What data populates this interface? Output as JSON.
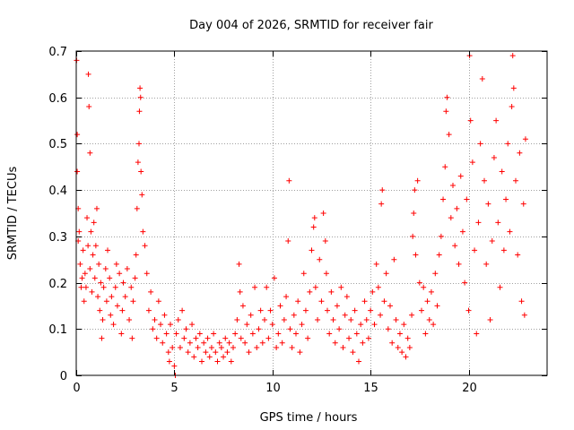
{
  "chart_data": {
    "type": "scatter",
    "title": "Day 004 of 2026, SRMTID for receiver fair",
    "xlabel": "GPS time / hours",
    "ylabel": "SRMTID / TECUs",
    "xlim": [
      0,
      24
    ],
    "ylim": [
      0,
      0.7
    ],
    "grid": true,
    "marker": "+",
    "marker_color": "#ff0000",
    "xticks": [
      0,
      5,
      10,
      15,
      20
    ],
    "xtick_labels": [
      "0",
      "5",
      "10",
      "15",
      "20"
    ],
    "yticks": [
      0,
      0.1,
      0.2,
      0.3,
      0.4,
      0.5,
      0.6,
      0.7
    ],
    "ytick_labels": [
      "0",
      "0.1",
      "0.2",
      "0.3",
      "0.4",
      "0.5",
      "0.6",
      "0.7"
    ],
    "series": [
      {
        "name": "SRMTID",
        "points": [
          [
            0.02,
            0.68
          ],
          [
            0.05,
            0.52
          ],
          [
            0.05,
            0.44
          ],
          [
            0.1,
            0.36
          ],
          [
            0.1,
            0.29
          ],
          [
            0.15,
            0.31
          ],
          [
            0.2,
            0.24
          ],
          [
            0.25,
            0.19
          ],
          [
            0.3,
            0.21
          ],
          [
            0.35,
            0.27
          ],
          [
            0.4,
            0.16
          ],
          [
            0.45,
            0.22
          ],
          [
            0.5,
            0.19
          ],
          [
            0.55,
            0.34
          ],
          [
            0.6,
            0.28
          ],
          [
            0.62,
            0.65
          ],
          [
            0.65,
            0.58
          ],
          [
            0.7,
            0.48
          ],
          [
            0.7,
            0.23
          ],
          [
            0.75,
            0.31
          ],
          [
            0.8,
            0.18
          ],
          [
            0.85,
            0.26
          ],
          [
            0.9,
            0.33
          ],
          [
            0.95,
            0.21
          ],
          [
            1.0,
            0.28
          ],
          [
            1.05,
            0.36
          ],
          [
            1.1,
            0.17
          ],
          [
            1.15,
            0.24
          ],
          [
            1.2,
            0.14
          ],
          [
            1.25,
            0.2
          ],
          [
            1.3,
            0.08
          ],
          [
            1.35,
            0.12
          ],
          [
            1.4,
            0.19
          ],
          [
            1.5,
            0.23
          ],
          [
            1.55,
            0.16
          ],
          [
            1.6,
            0.27
          ],
          [
            1.7,
            0.21
          ],
          [
            1.75,
            0.13
          ],
          [
            1.8,
            0.17
          ],
          [
            1.9,
            0.11
          ],
          [
            2.0,
            0.19
          ],
          [
            2.05,
            0.24
          ],
          [
            2.1,
            0.15
          ],
          [
            2.2,
            0.22
          ],
          [
            2.3,
            0.09
          ],
          [
            2.35,
            0.14
          ],
          [
            2.4,
            0.2
          ],
          [
            2.5,
            0.17
          ],
          [
            2.6,
            0.23
          ],
          [
            2.7,
            0.12
          ],
          [
            2.8,
            0.19
          ],
          [
            2.85,
            0.08
          ],
          [
            2.9,
            0.16
          ],
          [
            3.0,
            0.21
          ],
          [
            3.05,
            0.26
          ],
          [
            3.1,
            0.36
          ],
          [
            3.15,
            0.46
          ],
          [
            3.2,
            0.5
          ],
          [
            3.22,
            0.57
          ],
          [
            3.25,
            0.62
          ],
          [
            3.28,
            0.6
          ],
          [
            3.3,
            0.44
          ],
          [
            3.35,
            0.39
          ],
          [
            3.4,
            0.31
          ],
          [
            3.5,
            0.28
          ],
          [
            3.6,
            0.22
          ],
          [
            3.7,
            0.14
          ],
          [
            3.8,
            0.18
          ],
          [
            3.9,
            0.1
          ],
          [
            4.0,
            0.12
          ],
          [
            4.1,
            0.08
          ],
          [
            4.2,
            0.16
          ],
          [
            4.3,
            0.11
          ],
          [
            4.4,
            0.07
          ],
          [
            4.5,
            0.13
          ],
          [
            4.6,
            0.09
          ],
          [
            4.7,
            0.05
          ],
          [
            4.75,
            0.03
          ],
          [
            4.8,
            0.11
          ],
          [
            4.9,
            0.06
          ],
          [
            5.0,
            0.02
          ],
          [
            5.05,
            0.0
          ],
          [
            5.1,
            0.09
          ],
          [
            5.2,
            0.12
          ],
          [
            5.3,
            0.06
          ],
          [
            5.4,
            0.14
          ],
          [
            5.5,
            0.08
          ],
          [
            5.6,
            0.1
          ],
          [
            5.7,
            0.05
          ],
          [
            5.8,
            0.07
          ],
          [
            5.9,
            0.11
          ],
          [
            6.0,
            0.04
          ],
          [
            6.1,
            0.08
          ],
          [
            6.2,
            0.06
          ],
          [
            6.3,
            0.09
          ],
          [
            6.4,
            0.03
          ],
          [
            6.5,
            0.07
          ],
          [
            6.6,
            0.05
          ],
          [
            6.7,
            0.08
          ],
          [
            6.8,
            0.04
          ],
          [
            6.9,
            0.06
          ],
          [
            7.0,
            0.09
          ],
          [
            7.1,
            0.05
          ],
          [
            7.2,
            0.03
          ],
          [
            7.3,
            0.07
          ],
          [
            7.4,
            0.06
          ],
          [
            7.5,
            0.04
          ],
          [
            7.6,
            0.08
          ],
          [
            7.7,
            0.05
          ],
          [
            7.8,
            0.07
          ],
          [
            7.9,
            0.03
          ],
          [
            8.0,
            0.06
          ],
          [
            8.1,
            0.09
          ],
          [
            8.2,
            0.12
          ],
          [
            8.3,
            0.24
          ],
          [
            8.35,
            0.18
          ],
          [
            8.4,
            0.08
          ],
          [
            8.5,
            0.15
          ],
          [
            8.6,
            0.07
          ],
          [
            8.7,
            0.11
          ],
          [
            8.8,
            0.05
          ],
          [
            8.9,
            0.13
          ],
          [
            9.0,
            0.09
          ],
          [
            9.1,
            0.19
          ],
          [
            9.2,
            0.06
          ],
          [
            9.3,
            0.1
          ],
          [
            9.4,
            0.14
          ],
          [
            9.5,
            0.07
          ],
          [
            9.6,
            0.12
          ],
          [
            9.7,
            0.19
          ],
          [
            9.8,
            0.08
          ],
          [
            9.9,
            0.14
          ],
          [
            10.0,
            0.11
          ],
          [
            10.1,
            0.21
          ],
          [
            10.2,
            0.06
          ],
          [
            10.3,
            0.09
          ],
          [
            10.4,
            0.15
          ],
          [
            10.5,
            0.07
          ],
          [
            10.6,
            0.12
          ],
          [
            10.7,
            0.17
          ],
          [
            10.8,
            0.29
          ],
          [
            10.85,
            0.42
          ],
          [
            10.9,
            0.1
          ],
          [
            11.0,
            0.06
          ],
          [
            11.1,
            0.13
          ],
          [
            11.2,
            0.09
          ],
          [
            11.3,
            0.16
          ],
          [
            11.4,
            0.05
          ],
          [
            11.5,
            0.11
          ],
          [
            11.6,
            0.22
          ],
          [
            11.7,
            0.14
          ],
          [
            11.8,
            0.08
          ],
          [
            11.9,
            0.18
          ],
          [
            12.0,
            0.27
          ],
          [
            12.1,
            0.32
          ],
          [
            12.15,
            0.34
          ],
          [
            12.2,
            0.19
          ],
          [
            12.3,
            0.12
          ],
          [
            12.4,
            0.25
          ],
          [
            12.5,
            0.16
          ],
          [
            12.6,
            0.35
          ],
          [
            12.7,
            0.29
          ],
          [
            12.75,
            0.22
          ],
          [
            12.8,
            0.14
          ],
          [
            12.9,
            0.09
          ],
          [
            13.0,
            0.18
          ],
          [
            13.1,
            0.12
          ],
          [
            13.2,
            0.07
          ],
          [
            13.3,
            0.15
          ],
          [
            13.4,
            0.1
          ],
          [
            13.5,
            0.19
          ],
          [
            13.6,
            0.06
          ],
          [
            13.7,
            0.13
          ],
          [
            13.8,
            0.17
          ],
          [
            13.9,
            0.08
          ],
          [
            14.0,
            0.12
          ],
          [
            14.1,
            0.05
          ],
          [
            14.2,
            0.14
          ],
          [
            14.3,
            0.09
          ],
          [
            14.4,
            0.03
          ],
          [
            14.5,
            0.11
          ],
          [
            14.6,
            0.07
          ],
          [
            14.7,
            0.16
          ],
          [
            14.8,
            0.12
          ],
          [
            14.9,
            0.08
          ],
          [
            15.0,
            0.14
          ],
          [
            15.1,
            0.18
          ],
          [
            15.2,
            0.11
          ],
          [
            15.3,
            0.24
          ],
          [
            15.4,
            0.19
          ],
          [
            15.5,
            0.13
          ],
          [
            15.55,
            0.37
          ],
          [
            15.6,
            0.4
          ],
          [
            15.7,
            0.16
          ],
          [
            15.8,
            0.22
          ],
          [
            15.9,
            0.1
          ],
          [
            16.0,
            0.15
          ],
          [
            16.1,
            0.07
          ],
          [
            16.2,
            0.25
          ],
          [
            16.3,
            0.12
          ],
          [
            16.4,
            0.06
          ],
          [
            16.5,
            0.09
          ],
          [
            16.6,
            0.05
          ],
          [
            16.7,
            0.11
          ],
          [
            16.8,
            0.04
          ],
          [
            16.9,
            0.08
          ],
          [
            17.0,
            0.06
          ],
          [
            17.1,
            0.13
          ],
          [
            17.15,
            0.3
          ],
          [
            17.2,
            0.35
          ],
          [
            17.25,
            0.4
          ],
          [
            17.3,
            0.26
          ],
          [
            17.4,
            0.42
          ],
          [
            17.5,
            0.2
          ],
          [
            17.6,
            0.14
          ],
          [
            17.7,
            0.19
          ],
          [
            17.8,
            0.09
          ],
          [
            17.9,
            0.16
          ],
          [
            18.0,
            0.12
          ],
          [
            18.1,
            0.18
          ],
          [
            18.2,
            0.11
          ],
          [
            18.3,
            0.22
          ],
          [
            18.4,
            0.15
          ],
          [
            18.5,
            0.26
          ],
          [
            18.6,
            0.3
          ],
          [
            18.7,
            0.38
          ],
          [
            18.8,
            0.45
          ],
          [
            18.85,
            0.57
          ],
          [
            18.9,
            0.6
          ],
          [
            19.0,
            0.52
          ],
          [
            19.1,
            0.34
          ],
          [
            19.2,
            0.41
          ],
          [
            19.3,
            0.28
          ],
          [
            19.4,
            0.36
          ],
          [
            19.5,
            0.24
          ],
          [
            19.6,
            0.43
          ],
          [
            19.7,
            0.31
          ],
          [
            19.8,
            0.2
          ],
          [
            19.9,
            0.38
          ],
          [
            20.0,
            0.14
          ],
          [
            20.05,
            0.69
          ],
          [
            20.1,
            0.55
          ],
          [
            20.2,
            0.46
          ],
          [
            20.3,
            0.27
          ],
          [
            20.4,
            0.09
          ],
          [
            20.5,
            0.33
          ],
          [
            20.6,
            0.5
          ],
          [
            20.7,
            0.64
          ],
          [
            20.8,
            0.42
          ],
          [
            20.9,
            0.24
          ],
          [
            21.0,
            0.37
          ],
          [
            21.1,
            0.12
          ],
          [
            21.2,
            0.29
          ],
          [
            21.3,
            0.47
          ],
          [
            21.4,
            0.55
          ],
          [
            21.5,
            0.33
          ],
          [
            21.6,
            0.19
          ],
          [
            21.7,
            0.44
          ],
          [
            21.8,
            0.27
          ],
          [
            21.9,
            0.38
          ],
          [
            22.0,
            0.5
          ],
          [
            22.1,
            0.31
          ],
          [
            22.2,
            0.58
          ],
          [
            22.25,
            0.69
          ],
          [
            22.3,
            0.62
          ],
          [
            22.4,
            0.42
          ],
          [
            22.5,
            0.26
          ],
          [
            22.6,
            0.48
          ],
          [
            22.7,
            0.16
          ],
          [
            22.8,
            0.37
          ],
          [
            22.85,
            0.13
          ],
          [
            22.9,
            0.51
          ]
        ]
      }
    ]
  }
}
